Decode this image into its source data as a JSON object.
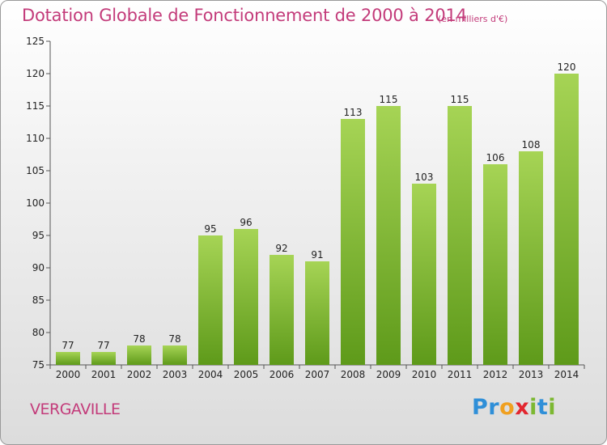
{
  "header": {
    "title": "Dotation Globale de Fonctionnement de 2000 à 2014",
    "subtitle": "(en milliers d'€)"
  },
  "footer": {
    "location": "VERGAVILLE",
    "logo_letters": [
      {
        "char": "P",
        "color": "#2f8fd8"
      },
      {
        "char": "r",
        "color": "#2f8fd8"
      },
      {
        "char": "o",
        "color": "#f0a020"
      },
      {
        "char": "x",
        "color": "#e2262f"
      },
      {
        "char": "i",
        "color": "#7cb832"
      },
      {
        "char": "t",
        "color": "#2f8fd8"
      },
      {
        "char": "i",
        "color": "#7cb832"
      }
    ]
  },
  "chart_data": {
    "type": "bar",
    "title": "Dotation Globale de Fonctionnement de 2000 à 2014",
    "subtitle": "(en milliers d'€)",
    "xlabel": "",
    "ylabel": "",
    "categories": [
      "2000",
      "2001",
      "2002",
      "2003",
      "2004",
      "2005",
      "2006",
      "2007",
      "2008",
      "2009",
      "2010",
      "2011",
      "2012",
      "2013",
      "2014"
    ],
    "values": [
      77,
      77,
      78,
      78,
      95,
      96,
      92,
      91,
      113,
      115,
      103,
      115,
      106,
      108,
      120
    ],
    "value_labels": [
      "77",
      "77",
      "78",
      "78",
      "95",
      "96",
      "92",
      "91",
      "113",
      "115",
      "103",
      "115",
      "106",
      "108",
      "120"
    ],
    "ylim": [
      75,
      125
    ],
    "yticks": [
      75,
      80,
      85,
      90,
      95,
      100,
      105,
      110,
      115,
      120,
      125
    ],
    "ytick_labels": [
      "75",
      "80",
      "85",
      "90",
      "95",
      "100",
      "105",
      "110",
      "115",
      "120",
      "125"
    ],
    "grid": false,
    "bar_color_top": "#a6d455",
    "bar_color_bottom": "#5e9a1a"
  }
}
